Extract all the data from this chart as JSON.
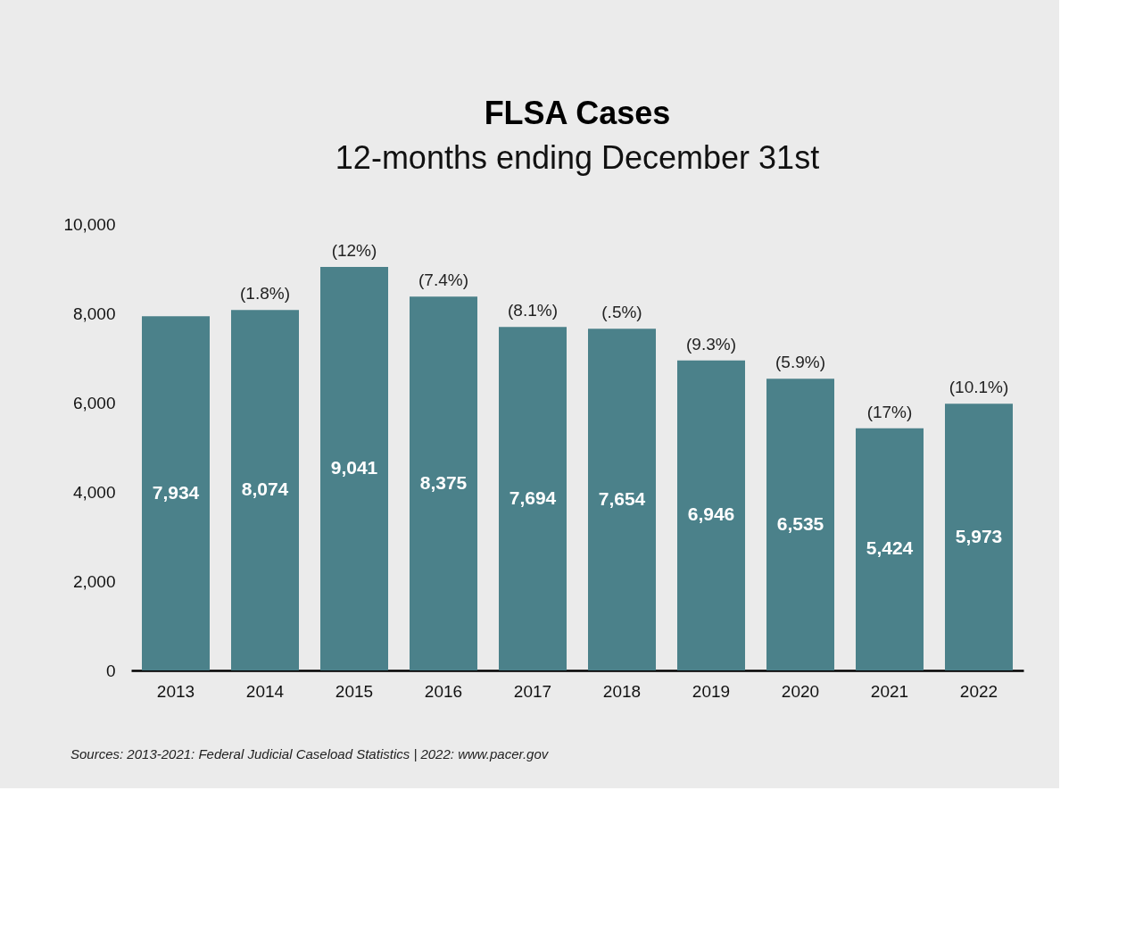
{
  "chart_data": {
    "type": "bar",
    "title": "FLSA Cases",
    "subtitle": "12-months ending December 31st",
    "categories": [
      "2013",
      "2014",
      "2015",
      "2016",
      "2017",
      "2018",
      "2019",
      "2020",
      "2021",
      "2022"
    ],
    "values": [
      7934,
      8074,
      9041,
      8375,
      7694,
      7654,
      6946,
      6535,
      5424,
      5973
    ],
    "color": "#4b818a",
    "value_labels": [
      "7,934",
      "8,074",
      "9,041",
      "8,375",
      "7,694",
      "7,654",
      "6,946",
      "6,535",
      "5,424",
      "5,973"
    ],
    "ylim": [
      0,
      10000
    ],
    "yticks": [
      0,
      {
        "value": 2000,
        "label": "2,000"
      },
      {
        "value": 4000,
        "label": "4,000"
      },
      {
        "value": 6000,
        "label": "6,000"
      },
      {
        "value": 8000,
        "label": "8,000"
      },
      {
        "value": 10000,
        "label": "10,000"
      }
    ],
    "grid": false,
    "annotations": [
      {
        "text": "(1.8%)",
        "x": "2014",
        "y": 8074
      },
      {
        "text": "(12%)",
        "x": "2015",
        "y": 9041
      },
      {
        "text": "(7.4%)",
        "x": "2016",
        "y": 8375
      },
      {
        "text": "(8.1%)",
        "x": "2017",
        "y": 7694
      },
      {
        "text": "(.5%)",
        "x": "2018",
        "y": 7654
      },
      {
        "text": "(9.3%)",
        "x": "2019",
        "y": 6946
      },
      {
        "text": "(5.9%)",
        "x": "2020",
        "y": 6535
      },
      {
        "text": "(17%)",
        "x": "2021",
        "y": 5424
      },
      {
        "text": "(10.1%)",
        "x": "2022",
        "y": 5973
      },
      "Sources: 2013-2021: Federal Judicial Caseload Statistics  |  2022: www.pacer.gov"
    ]
  }
}
